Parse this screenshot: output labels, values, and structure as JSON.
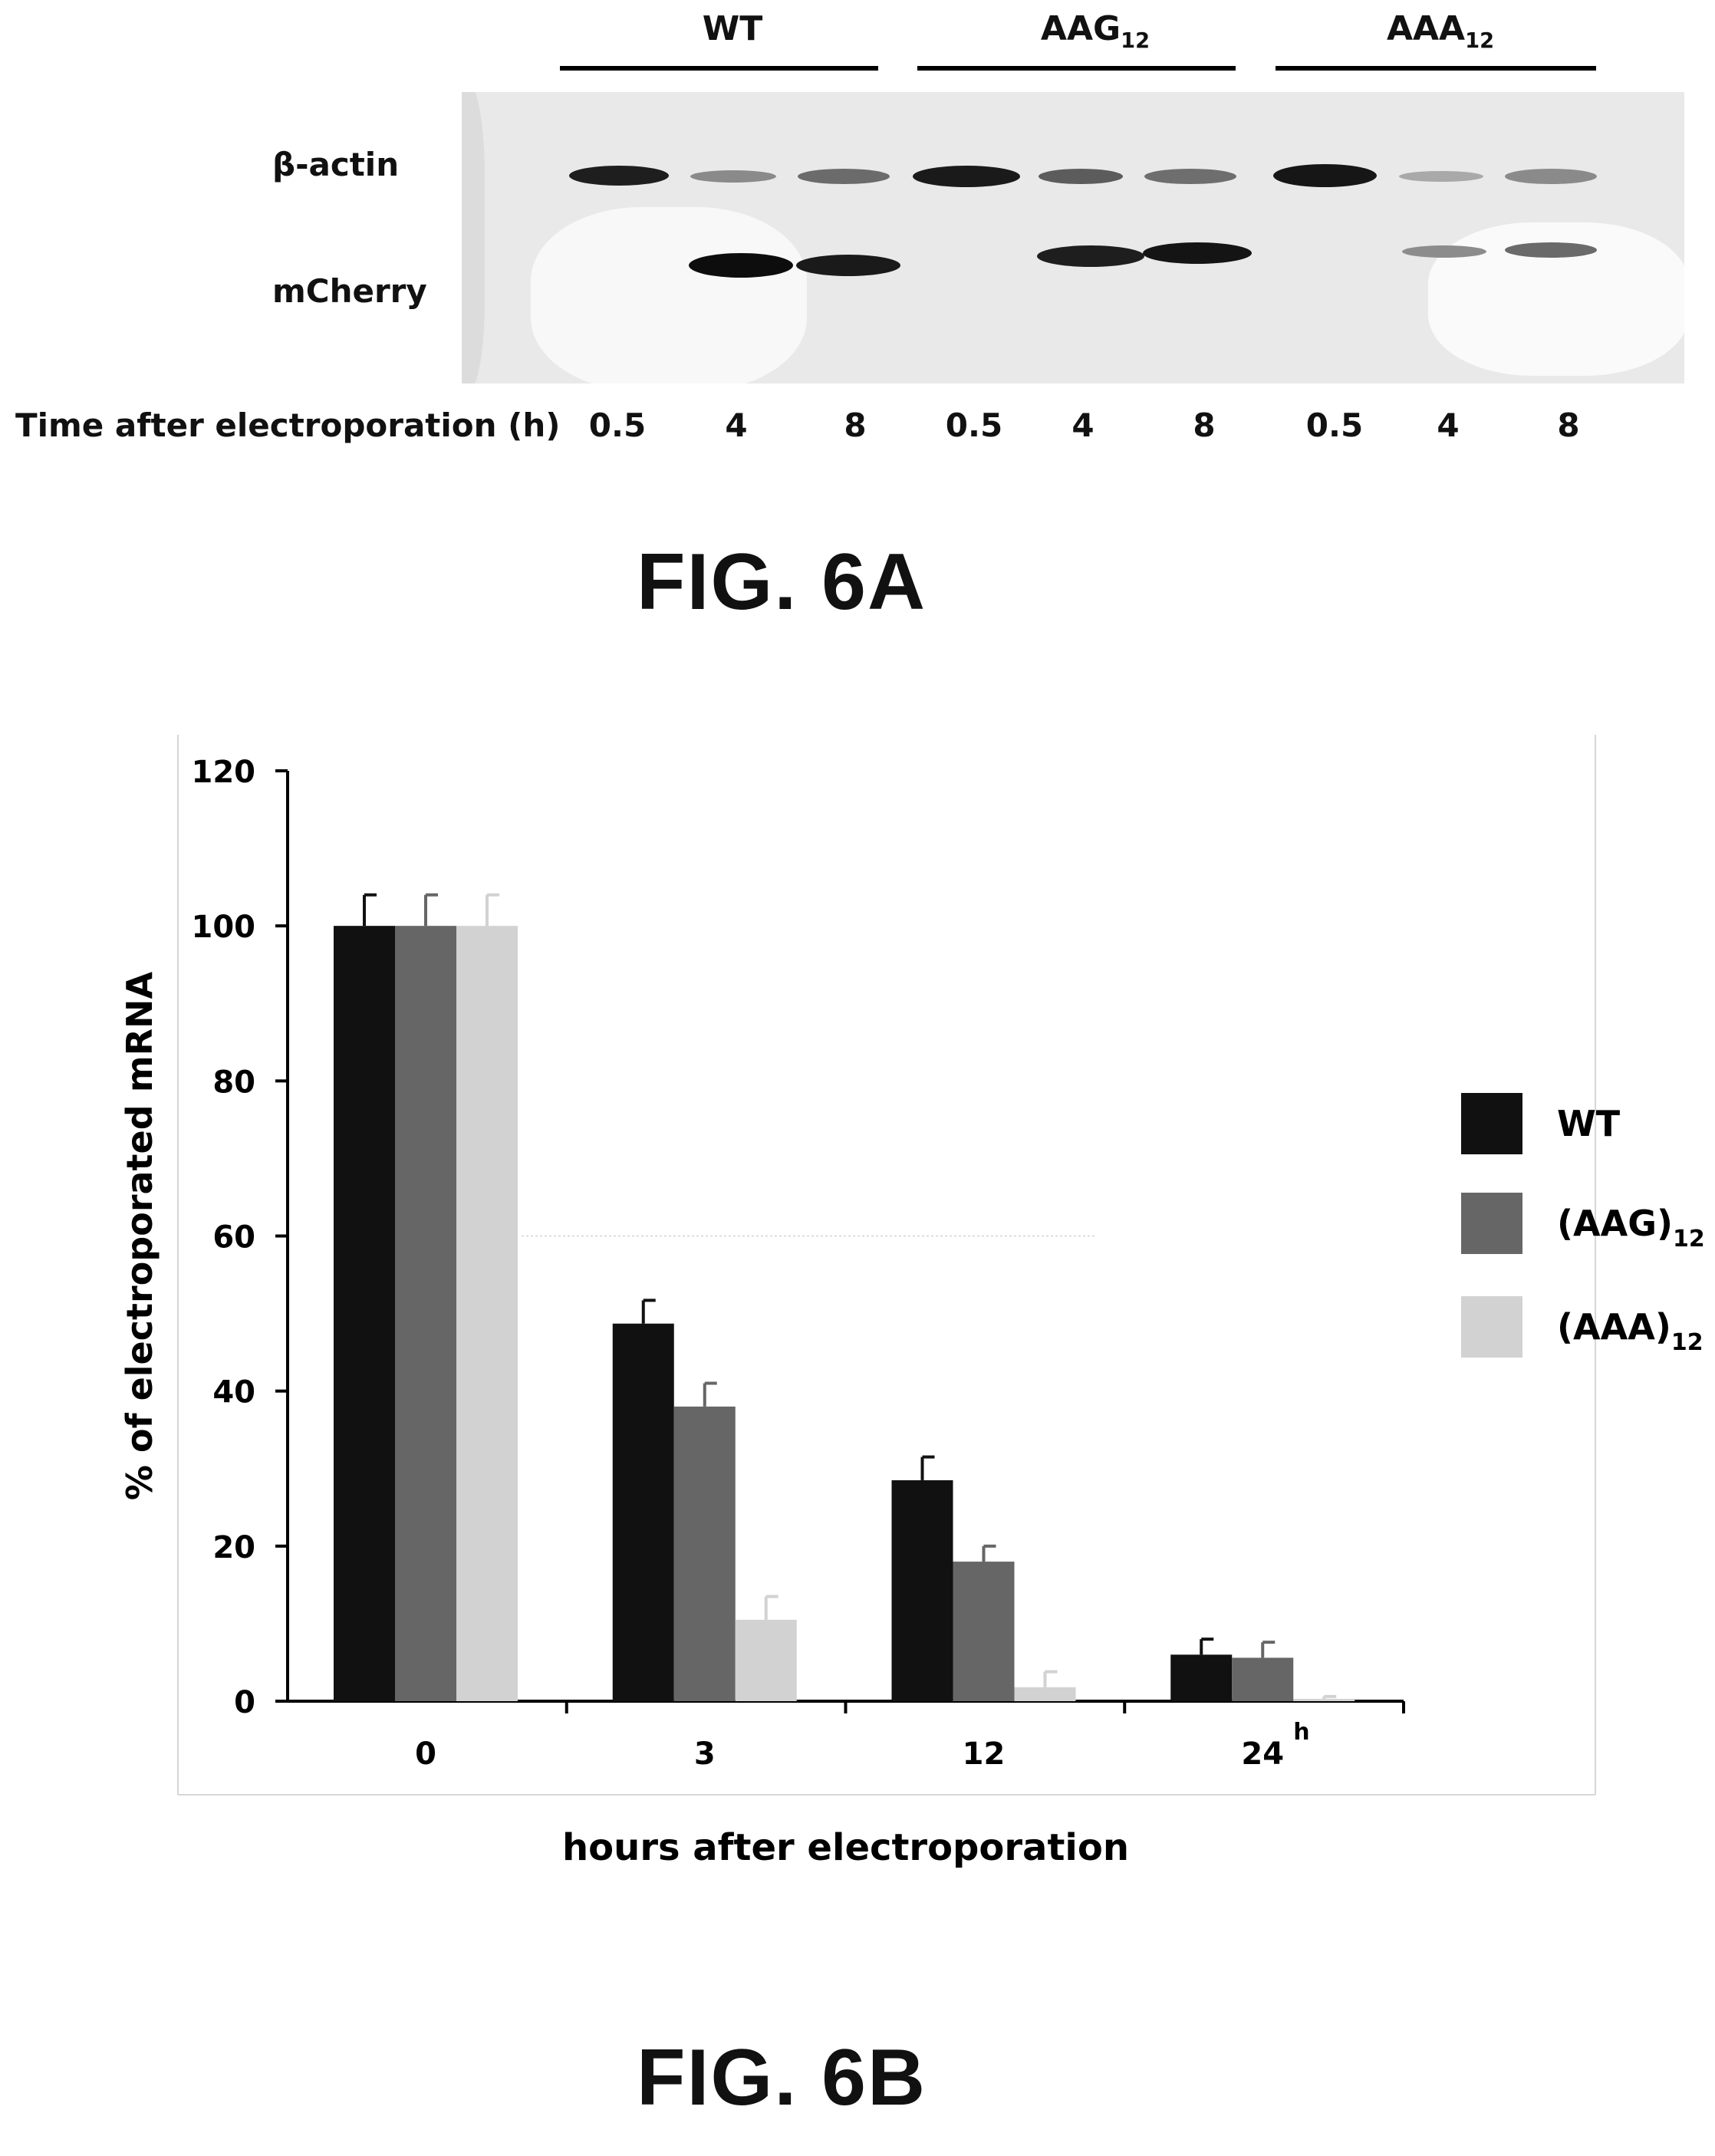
{
  "fig6a": {
    "title": "FIG. 6A",
    "groups": [
      {
        "label": "WT",
        "sub": ""
      },
      {
        "label": "AAG",
        "sub": "12"
      },
      {
        "label": "AAA",
        "sub": "12"
      }
    ],
    "rows": [
      "β-actin",
      "mCherry"
    ],
    "time_row_label": "Time after electroporation  (h)",
    "time_points": [
      "0.5",
      "4",
      "8",
      "0.5",
      "4",
      "8",
      "0.5",
      "4",
      "8"
    ]
  },
  "fig6b": {
    "title": "FIG. 6B"
  },
  "chart_data": {
    "type": "bar",
    "title": "",
    "xlabel": "hours after electroporation",
    "ylabel": "% of electroporated mRNA",
    "categories": [
      "0",
      "3",
      "12",
      "24"
    ],
    "last_category_suffix": "h",
    "ylim": [
      0,
      120
    ],
    "yticks": [
      0,
      20,
      40,
      60,
      80,
      100,
      120
    ],
    "legend_position": "right",
    "grid": false,
    "series": [
      {
        "name": "WT",
        "name_base": "WT",
        "name_sub": "",
        "color": "#111111",
        "values": [
          100,
          48.7,
          28.5,
          6.0
        ],
        "errors": [
          4,
          3,
          3,
          2
        ]
      },
      {
        "name": "(AAG)12",
        "name_base": "(AAG)",
        "name_sub": "12",
        "color": "#666666",
        "values": [
          100,
          38.0,
          18.0,
          5.6
        ],
        "errors": [
          4,
          3,
          2,
          2
        ]
      },
      {
        "name": "(AAA)12",
        "name_base": "(AAA)",
        "name_sub": "12",
        "color": "#d2d2d2",
        "values": [
          100,
          10.5,
          1.8,
          0.3
        ],
        "errors": [
          4,
          3,
          2,
          0.3
        ]
      }
    ]
  }
}
